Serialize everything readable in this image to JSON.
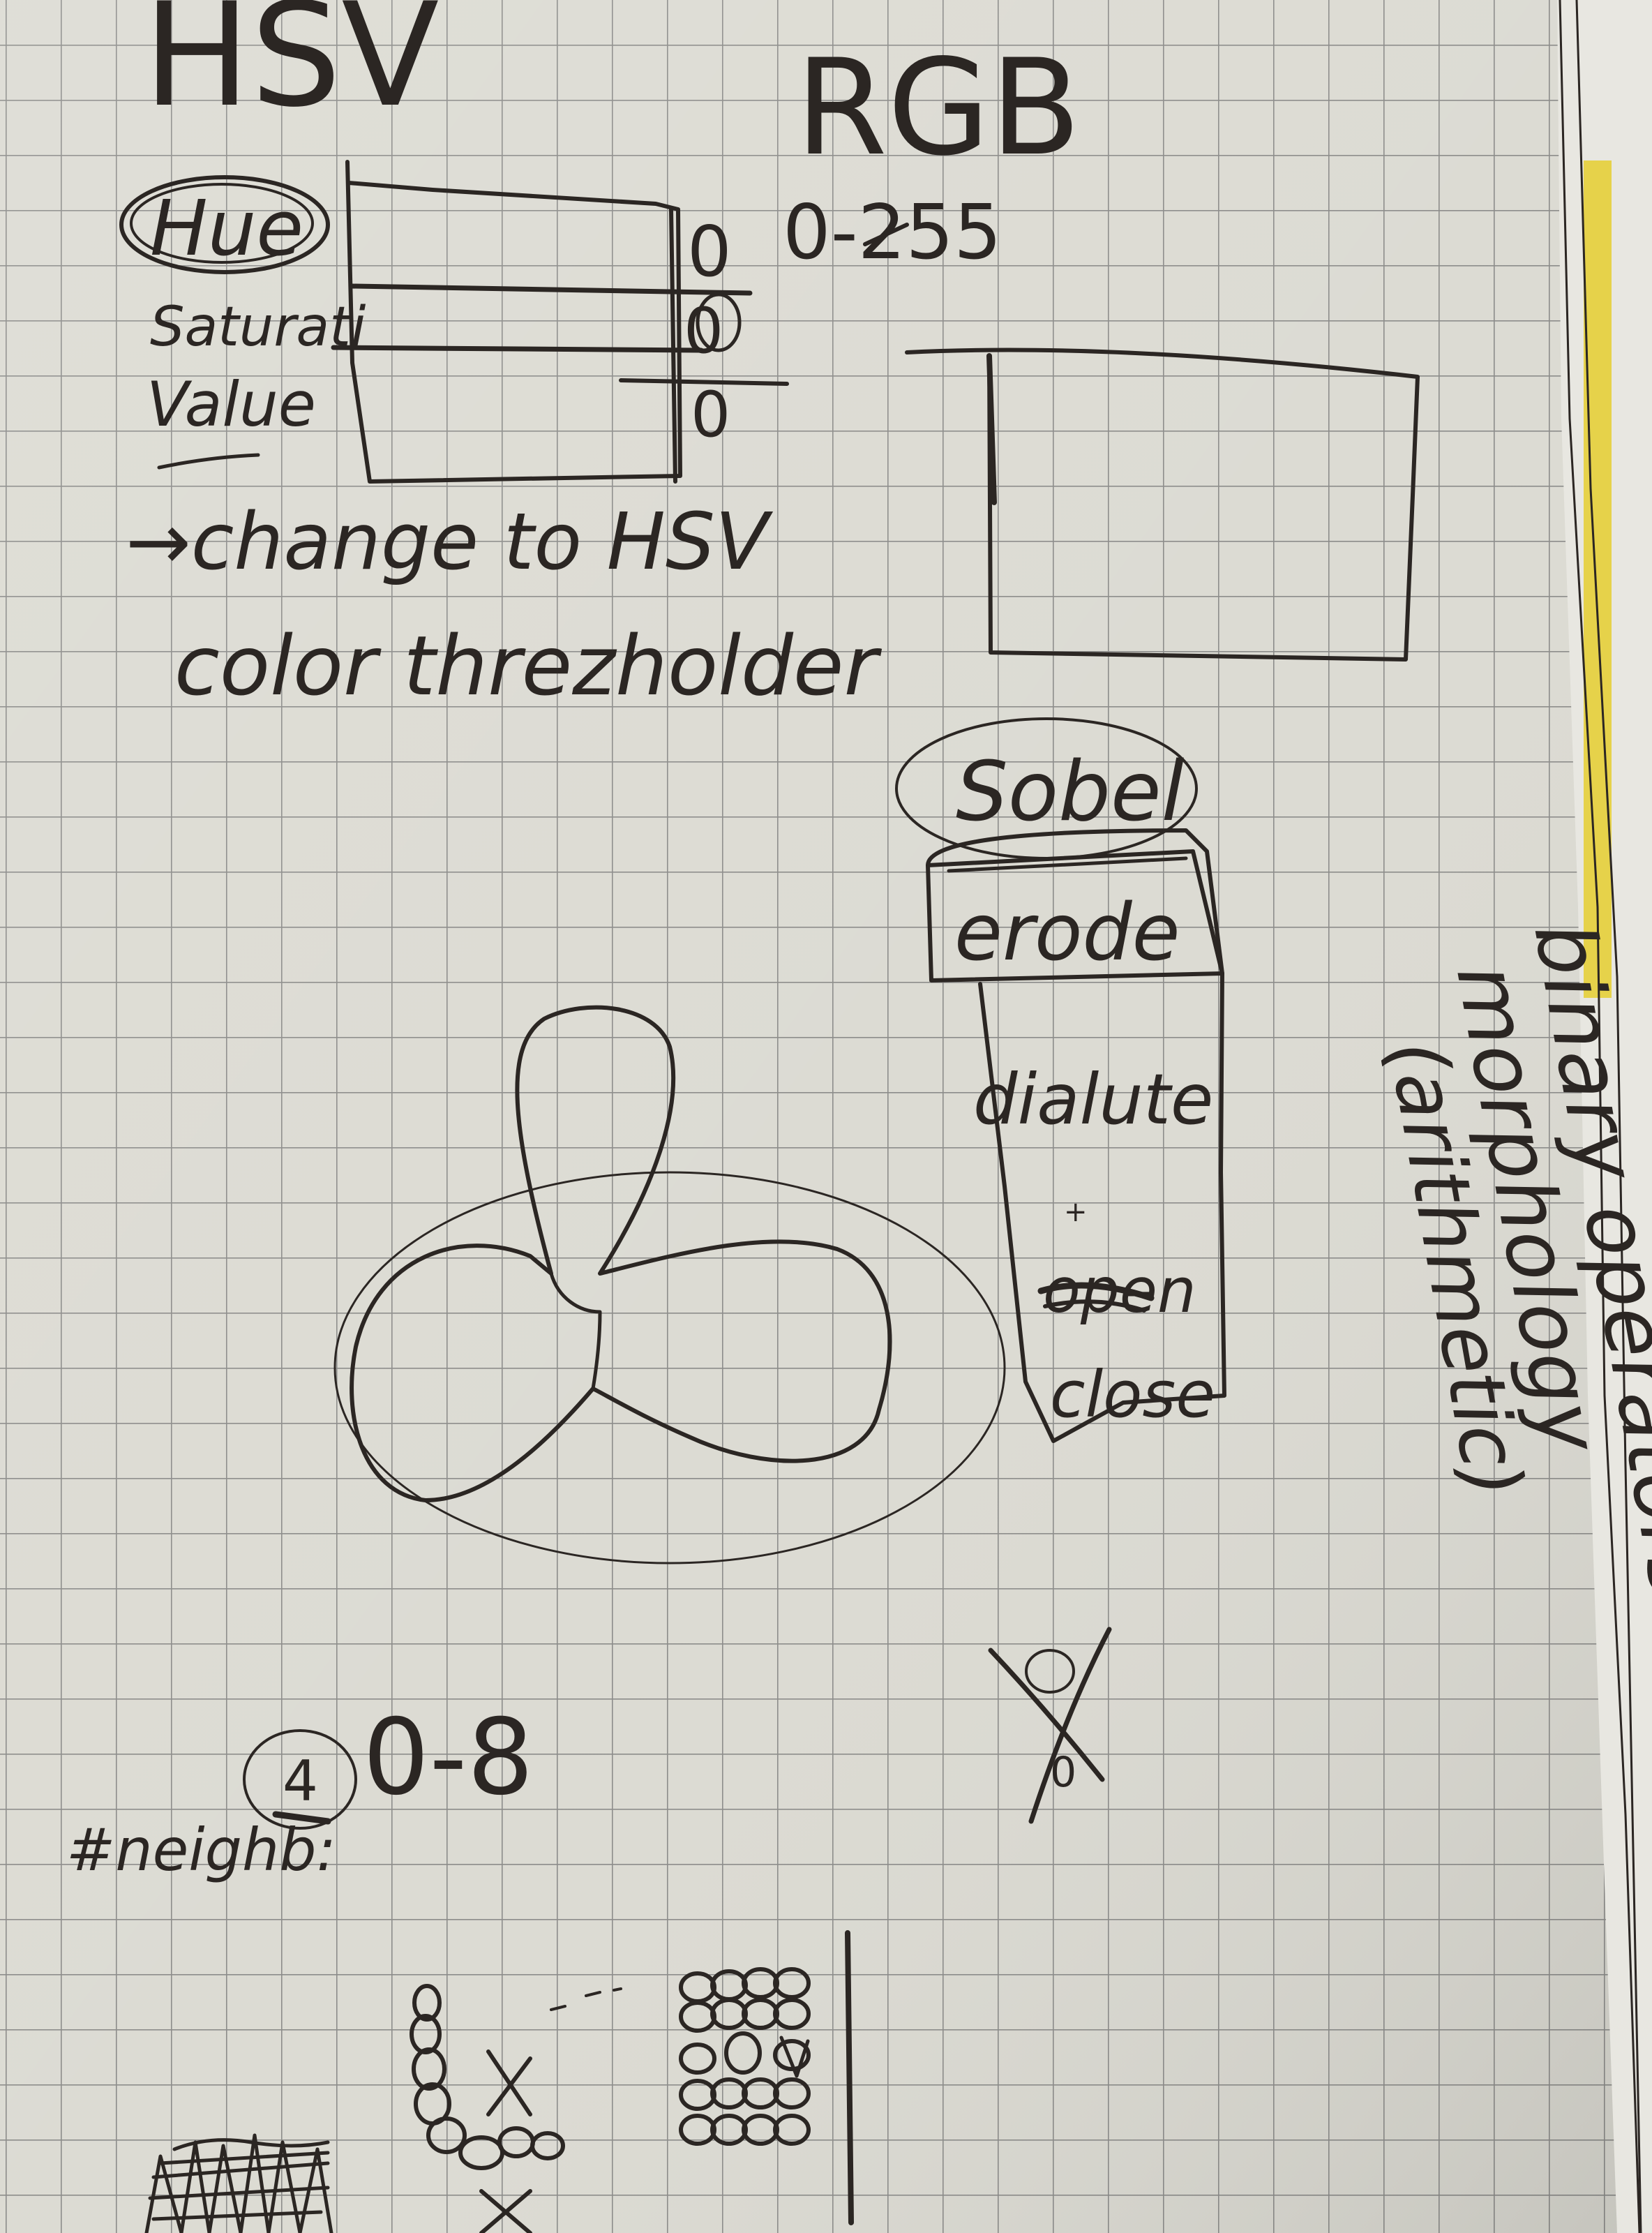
{
  "notes": {
    "hsv_heading": "HSV",
    "rgb_heading": "RGB",
    "hue_label": "Hue",
    "saturation_label": "Saturati",
    "value_label": "Value",
    "slider_zero": "0",
    "rgb_range": "0-255",
    "change_line_1": "→change to HSV",
    "change_line_2": "color threzholder",
    "sobel_label": "Sobel",
    "erode_label": "erode",
    "dialute_label": "dialute",
    "plus_mark": "+",
    "open_label": "open",
    "close_label": "close",
    "side_line_1": "binary operators of",
    "side_line_2": "morphology",
    "side_line_3": "(arithmetic)",
    "neighbors_label": "#neighb:",
    "neighbors_value": "4",
    "range_0_8": "0-8",
    "x_mark": "X",
    "small_zero": "0"
  },
  "colors": {
    "paper": "#dcdbd3",
    "grid": "#8c8c8a",
    "ink": "#2b2623",
    "faint_pencil": "#a9a49c",
    "yellow_page_edge": "#e6d24a"
  }
}
